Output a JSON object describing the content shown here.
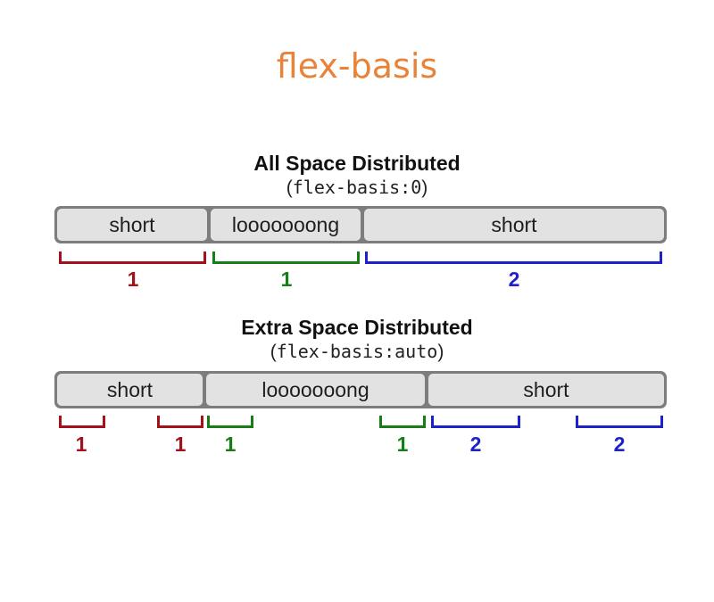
{
  "title": "flex-basis",
  "sections": [
    {
      "heading": "All Space Distributed",
      "open_paren": "(",
      "code": "flex-basis:0",
      "close_paren": ")",
      "items": [
        {
          "label": "short"
        },
        {
          "label": "looooooong"
        },
        {
          "label": "short"
        }
      ],
      "brackets": [
        {
          "color": "red",
          "label": "1"
        },
        {
          "color": "green",
          "label": "1"
        },
        {
          "color": "blue",
          "label": "2"
        }
      ]
    },
    {
      "heading": "Extra Space Distributed",
      "open_paren": "(",
      "code": "flex-basis:auto",
      "close_paren": ")",
      "items": [
        {
          "label": "short"
        },
        {
          "label": "looooooong"
        },
        {
          "label": "short"
        }
      ],
      "brackets": [
        {
          "color": "red",
          "label": "1"
        },
        {
          "color": "red",
          "label": "1"
        },
        {
          "color": "green",
          "label": "1"
        },
        {
          "color": "green",
          "label": "1"
        },
        {
          "color": "blue",
          "label": "2"
        },
        {
          "color": "blue",
          "label": "2"
        }
      ]
    }
  ],
  "colors": {
    "title": "#e8843a",
    "red": "#a3111b",
    "green": "#177d17",
    "blue": "#1f21c9",
    "container": "#7d7d7d",
    "item": "#e2e2e2"
  }
}
